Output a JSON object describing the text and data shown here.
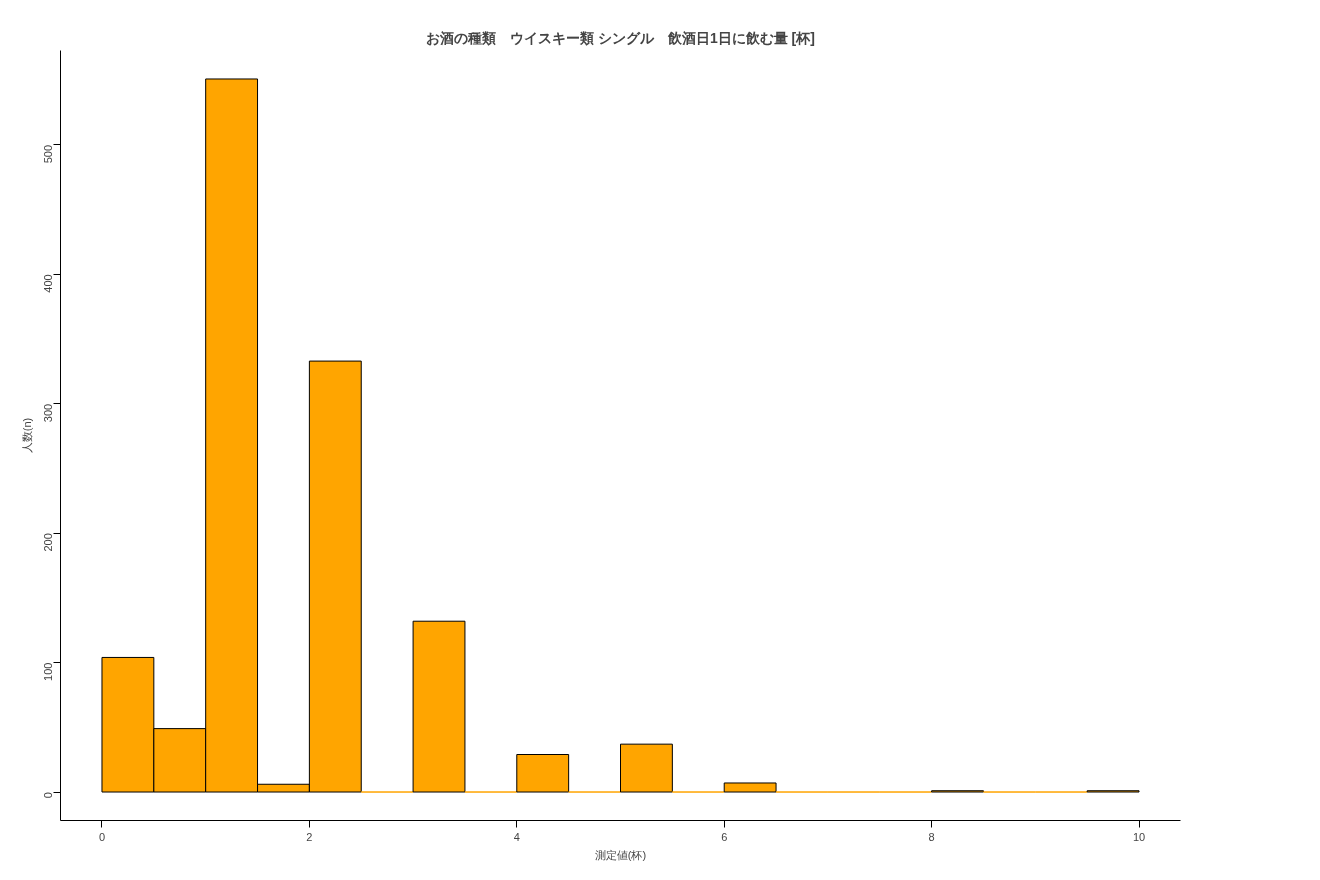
{
  "chart_data": {
    "type": "histogram",
    "title": "お酒の種類　ウイスキー類 シングル　飲酒日1日に飲む量 [杯]",
    "xlabel": "測定値(杯)",
    "ylabel": "人数(n)",
    "bins": [
      0,
      0.5,
      1,
      1.5,
      2,
      2.5,
      3,
      3.5,
      4,
      4.5,
      5,
      5.5,
      6,
      6.5,
      7,
      7.5,
      8,
      8.5,
      9,
      9.5,
      10
    ],
    "values": [
      104,
      49,
      551,
      6,
      333,
      0,
      132,
      0,
      29,
      0,
      37,
      0,
      7,
      0,
      0,
      0,
      1,
      0,
      0,
      1
    ],
    "color": "#ffa500",
    "xlim": [
      -0.4,
      10.4
    ],
    "xticks": [
      0,
      2,
      4,
      6,
      8,
      10
    ],
    "ylim": [
      -22,
      573
    ],
    "yticks": [
      0,
      100,
      200,
      300,
      400,
      500
    ],
    "grid": false
  }
}
